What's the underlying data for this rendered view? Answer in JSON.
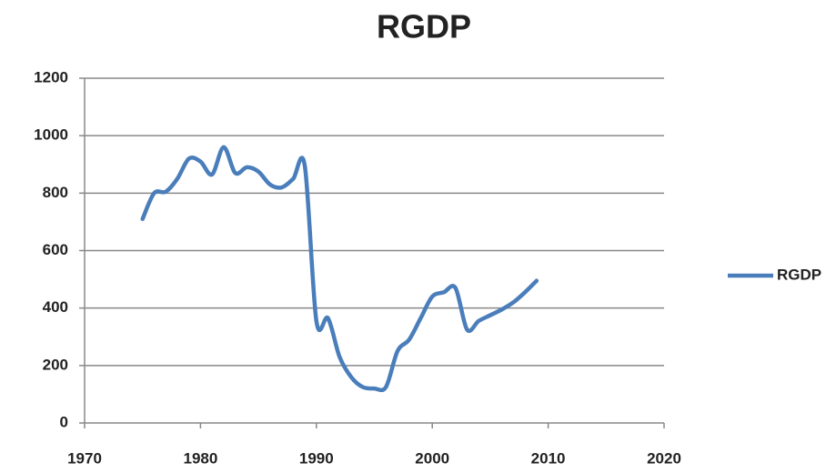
{
  "chart_data": {
    "type": "line",
    "title": "RGDP",
    "x": [
      1975,
      1976,
      1977,
      1978,
      1979,
      1980,
      1981,
      1982,
      1983,
      1984,
      1985,
      1986,
      1987,
      1988,
      1989,
      1990,
      1991,
      1992,
      1993,
      1994,
      1995,
      1996,
      1997,
      1998,
      1999,
      2000,
      2001,
      2002,
      2003,
      2004,
      2005,
      2006,
      2007,
      2008,
      2009
    ],
    "series": [
      {
        "name": "RGDP",
        "color": "#4a7ebb",
        "values": [
          710,
          800,
          805,
          850,
          920,
          910,
          865,
          960,
          870,
          890,
          875,
          830,
          820,
          850,
          895,
          355,
          365,
          230,
          160,
          125,
          120,
          125,
          250,
          290,
          365,
          440,
          455,
          470,
          325,
          355,
          375,
          395,
          420,
          455,
          495
        ]
      }
    ],
    "xlim": [
      1970,
      2020
    ],
    "xticks": [
      1970,
      1980,
      1990,
      2000,
      2010,
      2020
    ],
    "ylim": [
      0,
      1200
    ],
    "yticks": [
      0,
      200,
      400,
      600,
      800,
      1000,
      1200
    ],
    "grid": true,
    "legend": "right"
  }
}
